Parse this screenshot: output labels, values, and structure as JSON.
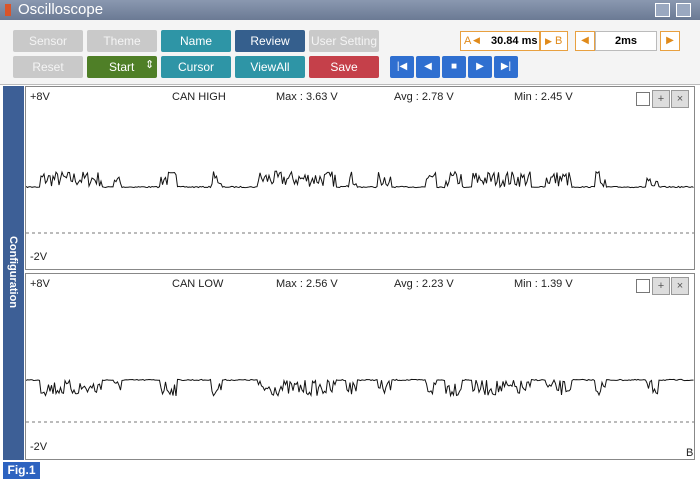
{
  "window": {
    "title": "Oscilloscope"
  },
  "toolbar": {
    "row1": [
      "Sensor",
      "Theme",
      "Name",
      "Review",
      "User Setting"
    ],
    "row2": [
      "Reset",
      "Start",
      "Cursor",
      "ViewAll",
      "Save"
    ],
    "cursor_a": "A",
    "cursor_time": "30.84 ms",
    "cursor_b": "B",
    "time_div": "2ms"
  },
  "sidebar": "Configuration",
  "channels": [
    {
      "top": "+8V",
      "name": "CAN HIGH",
      "max": "Max : 3.63 V",
      "avg": "Avg : 2.78 V",
      "min": "Min : 2.45 V",
      "bottom": "-2V"
    },
    {
      "top": "+8V",
      "name": "CAN LOW",
      "max": "Max : 2.56 V",
      "avg": "Avg : 2.23 V",
      "min": "Min : 1.39 V",
      "bottom": "-2V",
      "corner": "B"
    }
  ],
  "figure_label": "Fig.1"
}
